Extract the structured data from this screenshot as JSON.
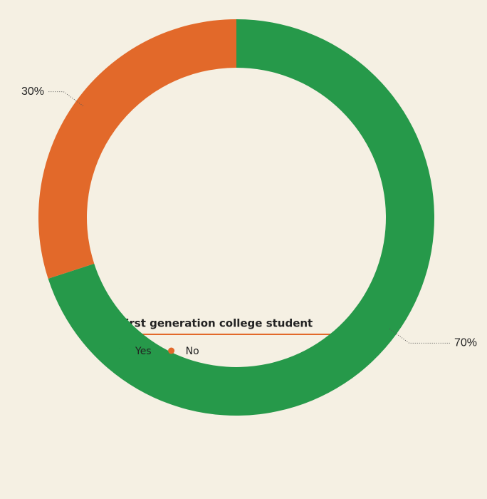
{
  "chart_data": {
    "type": "donut",
    "legend_title": "First generation college student",
    "categories": [
      "Yes",
      "No"
    ],
    "values": [
      70,
      30
    ],
    "value_labels": [
      "70%",
      "30%"
    ],
    "colors": [
      "#26994a",
      "#e2692a"
    ]
  }
}
